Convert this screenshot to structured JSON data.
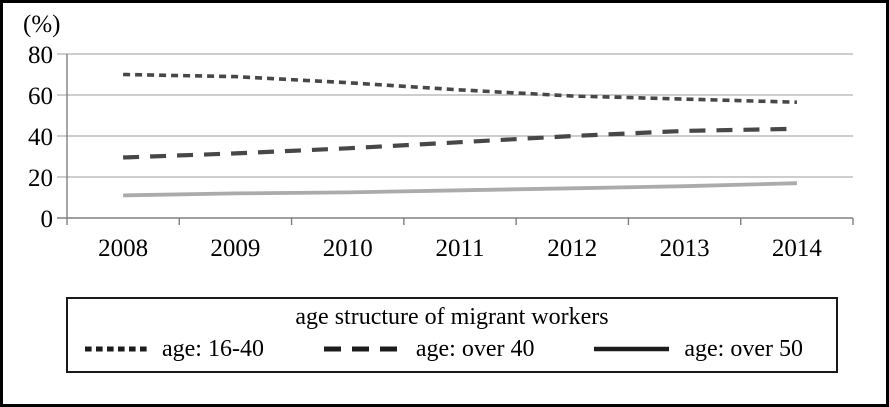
{
  "chart_data": {
    "type": "line",
    "title": "",
    "y_unit": "(%)",
    "xlabel": "",
    "ylabel": "(%)",
    "categories": [
      "2008",
      "2009",
      "2010",
      "2011",
      "2012",
      "2013",
      "2014"
    ],
    "y_ticks": [
      0,
      20,
      40,
      60,
      80
    ],
    "ylim": [
      0,
      80
    ],
    "grid": true,
    "series": [
      {
        "name": "age: 16-40",
        "values": [
          70,
          69,
          66,
          62.5,
          59.5,
          58,
          56.5
        ],
        "line_style": "dotted",
        "color": "#474747"
      },
      {
        "name": "age: over 40",
        "values": [
          29.5,
          31.5,
          34,
          37,
          40,
          42.5,
          43.5
        ],
        "line_style": "dashed",
        "color": "#474747"
      },
      {
        "name": "age: over 50",
        "values": [
          11,
          12,
          12.5,
          13.5,
          14.5,
          15.5,
          17
        ],
        "line_style": "solid",
        "color": "#ababab"
      }
    ],
    "legend": {
      "title": "age structure of migrant workers",
      "position": "bottom",
      "items": [
        {
          "label": "age: 16-40",
          "line_style": "dotted",
          "sample_color": "#1c1c1c"
        },
        {
          "label": "age: over 40",
          "line_style": "dashed",
          "sample_color": "#1c1c1c"
        },
        {
          "label": "age: over 50",
          "line_style": "solid",
          "sample_color": "#1c1c1c"
        }
      ]
    },
    "colors": {
      "gridline": "#9b9b9b",
      "axis": "#808080",
      "dark_series": "#474747",
      "light_series": "#ababab",
      "frame_border": "#000000"
    }
  }
}
